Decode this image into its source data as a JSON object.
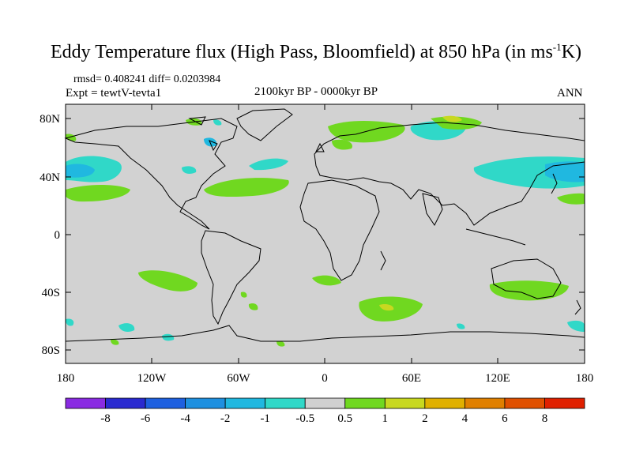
{
  "title": {
    "main": "Eddy Temperature flux (High Pass, Bloomfield) at 850 hPa (in ms",
    "sup": "-1",
    "unit_end": "K)"
  },
  "stats": "rmsd= 0.408241 diff= 0.0203984",
  "expt": "Expt = tewtV-tevta1",
  "period": "2100kyr BP - 0000kyr BP",
  "season": "ANN",
  "y_labels": [
    "80N",
    "40N",
    "0",
    "40S",
    "80S"
  ],
  "x_labels": [
    "180",
    "120W",
    "60W",
    "0",
    "60E",
    "120E",
    "180"
  ],
  "colorbar": {
    "colors": [
      "#8a2be2",
      "#2a2ad0",
      "#1e60e0",
      "#1e90e0",
      "#20b8e0",
      "#30d8c8",
      "#d0d0d0",
      "#70d820",
      "#c8d820",
      "#e0b000",
      "#e08000",
      "#e05000",
      "#e02000"
    ],
    "labels": [
      "-8",
      "-6",
      "-4",
      "-2",
      "-1",
      "-0.5",
      "0.5",
      "1",
      "2",
      "4",
      "6",
      "8"
    ]
  },
  "colors": {
    "background_field": "#d2d2d2",
    "positive_light": "#70d820",
    "positive_mid": "#c8d820",
    "negative_light": "#30d8c8",
    "negative_mid": "#20b8e0"
  }
}
